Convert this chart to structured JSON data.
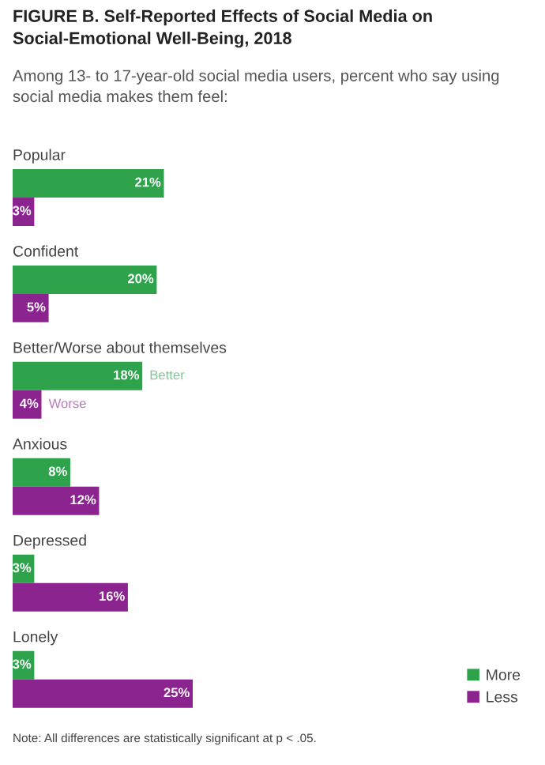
{
  "chart_data": {
    "type": "bar",
    "orientation": "horizontal",
    "title": "FIGURE B. Self-Reported Effects of Social Media on Social-Emotional Well-Being, 2018",
    "subtitle": "Among 13- to 17-year-old social media users, percent who say using social media makes them feel:",
    "categories": [
      "Popular",
      "Confident",
      "Better/Worse about themselves",
      "Anxious",
      "Depressed",
      "Lonely"
    ],
    "series": [
      {
        "name": "More",
        "color": "#2ea34c",
        "values": [
          21,
          20,
          18,
          8,
          3,
          3
        ],
        "value_labels": [
          "21%",
          "20%",
          "18%",
          "8%",
          "3%",
          "3%"
        ]
      },
      {
        "name": "Less",
        "color": "#8c2490",
        "values": [
          3,
          5,
          4,
          12,
          16,
          25
        ],
        "value_labels": [
          "3%",
          "5%",
          "4%",
          "12%",
          "16%",
          "25%"
        ]
      }
    ],
    "annotations": [
      {
        "text": "Better",
        "x": 18,
        "y": "Better/Worse about themselves"
      },
      {
        "text": "Worse",
        "x": 4,
        "y": "Better/Worse about themselves"
      },
      "Note: All differences are statistically significant at p < .05."
    ],
    "legend": "bottom right"
  }
}
